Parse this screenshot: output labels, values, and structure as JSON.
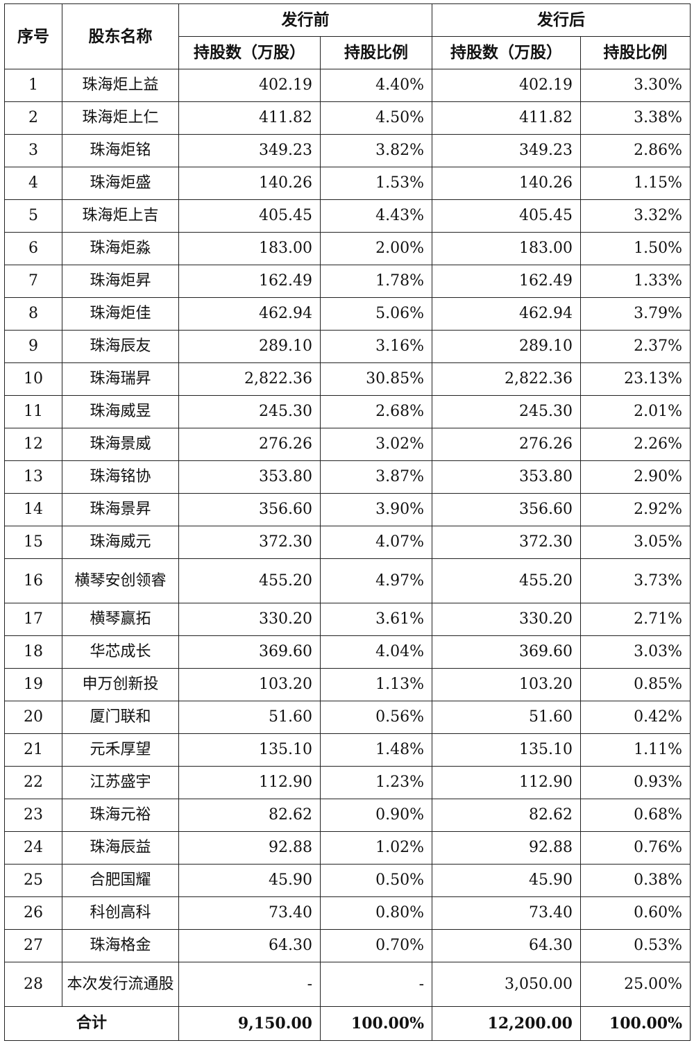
{
  "headers": {
    "seq": "序号",
    "name": "股东名称",
    "before": "发行前",
    "after": "发行后",
    "shares": "持股数（万股）",
    "ratio": "持股比例"
  },
  "rows": [
    {
      "seq": "1",
      "name": "珠海炬上益",
      "before_shares": "402.19",
      "before_ratio": "4.40%",
      "after_shares": "402.19",
      "after_ratio": "3.30%"
    },
    {
      "seq": "2",
      "name": "珠海炬上仁",
      "before_shares": "411.82",
      "before_ratio": "4.50%",
      "after_shares": "411.82",
      "after_ratio": "3.38%"
    },
    {
      "seq": "3",
      "name": "珠海炬铭",
      "before_shares": "349.23",
      "before_ratio": "3.82%",
      "after_shares": "349.23",
      "after_ratio": "2.86%"
    },
    {
      "seq": "4",
      "name": "珠海炬盛",
      "before_shares": "140.26",
      "before_ratio": "1.53%",
      "after_shares": "140.26",
      "after_ratio": "1.15%"
    },
    {
      "seq": "5",
      "name": "珠海炬上吉",
      "before_shares": "405.45",
      "before_ratio": "4.43%",
      "after_shares": "405.45",
      "after_ratio": "3.32%"
    },
    {
      "seq": "6",
      "name": "珠海炬淼",
      "before_shares": "183.00",
      "before_ratio": "2.00%",
      "after_shares": "183.00",
      "after_ratio": "1.50%"
    },
    {
      "seq": "7",
      "name": "珠海炬昇",
      "before_shares": "162.49",
      "before_ratio": "1.78%",
      "after_shares": "162.49",
      "after_ratio": "1.33%"
    },
    {
      "seq": "8",
      "name": "珠海炬佳",
      "before_shares": "462.94",
      "before_ratio": "5.06%",
      "after_shares": "462.94",
      "after_ratio": "3.79%"
    },
    {
      "seq": "9",
      "name": "珠海辰友",
      "before_shares": "289.10",
      "before_ratio": "3.16%",
      "after_shares": "289.10",
      "after_ratio": "2.37%"
    },
    {
      "seq": "10",
      "name": "珠海瑞昇",
      "before_shares": "2,822.36",
      "before_ratio": "30.85%",
      "after_shares": "2,822.36",
      "after_ratio": "23.13%"
    },
    {
      "seq": "11",
      "name": "珠海威昱",
      "before_shares": "245.30",
      "before_ratio": "2.68%",
      "after_shares": "245.30",
      "after_ratio": "2.01%"
    },
    {
      "seq": "12",
      "name": "珠海景威",
      "before_shares": "276.26",
      "before_ratio": "3.02%",
      "after_shares": "276.26",
      "after_ratio": "2.26%"
    },
    {
      "seq": "13",
      "name": "珠海铭协",
      "before_shares": "353.80",
      "before_ratio": "3.87%",
      "after_shares": "353.80",
      "after_ratio": "2.90%"
    },
    {
      "seq": "14",
      "name": "珠海景昇",
      "before_shares": "356.60",
      "before_ratio": "3.90%",
      "after_shares": "356.60",
      "after_ratio": "2.92%"
    },
    {
      "seq": "15",
      "name": "珠海威元",
      "before_shares": "372.30",
      "before_ratio": "4.07%",
      "after_shares": "372.30",
      "after_ratio": "3.05%"
    },
    {
      "seq": "16",
      "name": "横琴安创领睿",
      "before_shares": "455.20",
      "before_ratio": "4.97%",
      "after_shares": "455.20",
      "after_ratio": "3.73%"
    },
    {
      "seq": "17",
      "name": "横琴赢拓",
      "before_shares": "330.20",
      "before_ratio": "3.61%",
      "after_shares": "330.20",
      "after_ratio": "2.71%"
    },
    {
      "seq": "18",
      "name": "华芯成长",
      "before_shares": "369.60",
      "before_ratio": "4.04%",
      "after_shares": "369.60",
      "after_ratio": "3.03%"
    },
    {
      "seq": "19",
      "name": "申万创新投",
      "before_shares": "103.20",
      "before_ratio": "1.13%",
      "after_shares": "103.20",
      "after_ratio": "0.85%"
    },
    {
      "seq": "20",
      "name": "厦门联和",
      "before_shares": "51.60",
      "before_ratio": "0.56%",
      "after_shares": "51.60",
      "after_ratio": "0.42%"
    },
    {
      "seq": "21",
      "name": "元禾厚望",
      "before_shares": "135.10",
      "before_ratio": "1.48%",
      "after_shares": "135.10",
      "after_ratio": "1.11%"
    },
    {
      "seq": "22",
      "name": "江苏盛宇",
      "before_shares": "112.90",
      "before_ratio": "1.23%",
      "after_shares": "112.90",
      "after_ratio": "0.93%"
    },
    {
      "seq": "23",
      "name": "珠海元裕",
      "before_shares": "82.62",
      "before_ratio": "0.90%",
      "after_shares": "82.62",
      "after_ratio": "0.68%"
    },
    {
      "seq": "24",
      "name": "珠海辰益",
      "before_shares": "92.88",
      "before_ratio": "1.02%",
      "after_shares": "92.88",
      "after_ratio": "0.76%"
    },
    {
      "seq": "25",
      "name": "合肥国耀",
      "before_shares": "45.90",
      "before_ratio": "0.50%",
      "after_shares": "45.90",
      "after_ratio": "0.38%"
    },
    {
      "seq": "26",
      "name": "科创高科",
      "before_shares": "73.40",
      "before_ratio": "0.80%",
      "after_shares": "73.40",
      "after_ratio": "0.60%"
    },
    {
      "seq": "27",
      "name": "珠海格金",
      "before_shares": "64.30",
      "before_ratio": "0.70%",
      "after_shares": "64.30",
      "after_ratio": "0.53%"
    },
    {
      "seq": "28",
      "name": "本次发行流通股",
      "before_shares": "-",
      "before_ratio": "-",
      "after_shares": "3,050.00",
      "after_ratio": "25.00%"
    }
  ],
  "total": {
    "label": "合计",
    "before_shares": "9,150.00",
    "before_ratio": "100.00%",
    "after_shares": "12,200.00",
    "after_ratio": "100.00%"
  }
}
